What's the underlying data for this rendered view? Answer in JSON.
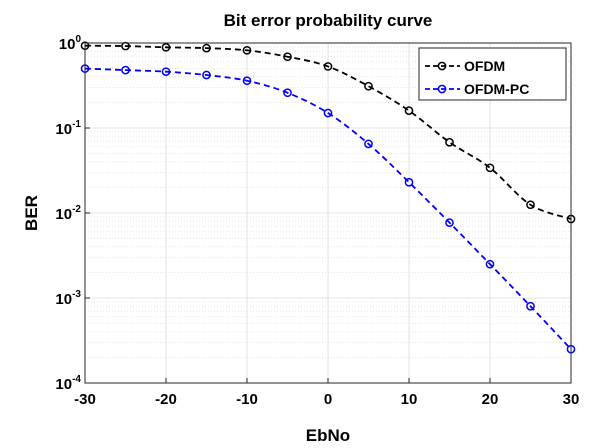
{
  "chart_data": {
    "type": "line",
    "title": "Bit error probability curve",
    "xlabel": "EbNo",
    "ylabel": "BER",
    "yscale": "log",
    "xlim": [
      -30,
      30
    ],
    "ylim": [
      0.0001,
      1
    ],
    "grid": true,
    "minor_grid": true,
    "legend_position": "top-right",
    "x_ticks": [
      -30,
      -20,
      -10,
      0,
      10,
      20,
      30
    ],
    "x_tick_labels": [
      "-30",
      "-20",
      "-10",
      "0",
      "10",
      "20",
      "30"
    ],
    "y_ticks": [
      {
        "value": 1,
        "base": "10",
        "exp": "0"
      },
      {
        "value": 0.1,
        "base": "10",
        "exp": "-1"
      },
      {
        "value": 0.01,
        "base": "10",
        "exp": "-2"
      },
      {
        "value": 0.001,
        "base": "10",
        "exp": "-3"
      },
      {
        "value": 0.0001,
        "base": "10",
        "exp": "-4"
      }
    ],
    "x": [
      -30,
      -25,
      -20,
      -15,
      -10,
      -5,
      0,
      5,
      10,
      15,
      20,
      25,
      30
    ],
    "series": [
      {
        "name": "OFDM",
        "color": "#000000",
        "values": [
          0.93,
          0.92,
          0.89,
          0.87,
          0.82,
          0.69,
          0.53,
          0.31,
          0.16,
          0.068,
          0.034,
          0.0125,
          0.0085
        ]
      },
      {
        "name": "OFDM-PC",
        "color": "#0000ff",
        "values": [
          0.5,
          0.48,
          0.46,
          0.42,
          0.36,
          0.26,
          0.15,
          0.065,
          0.023,
          0.0077,
          0.0025,
          0.0008,
          0.00025
        ]
      }
    ]
  }
}
